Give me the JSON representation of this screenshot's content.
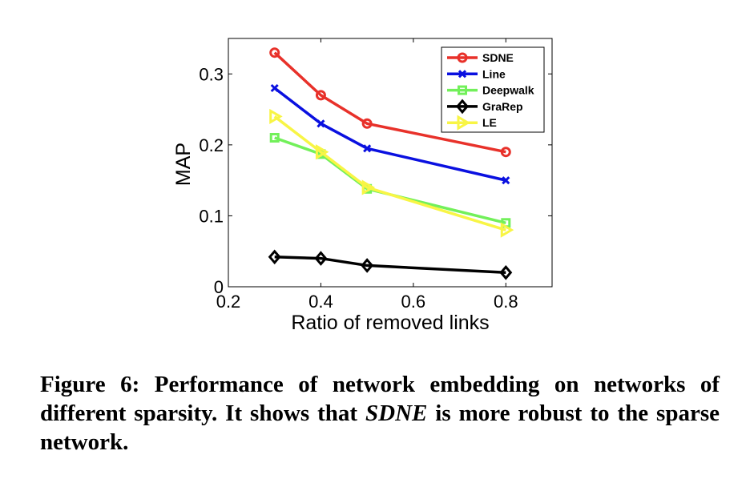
{
  "chart_data": {
    "type": "line",
    "title": "",
    "xlabel": "Ratio of removed links",
    "ylabel": "MAP",
    "xlim": [
      0.2,
      0.9
    ],
    "ylim": [
      0,
      0.35
    ],
    "xticks": [
      "0.2",
      "0.4",
      "0.6",
      "0.8"
    ],
    "yticks": [
      "0",
      "0.1",
      "0.2",
      "0.3"
    ],
    "x": [
      0.3,
      0.4,
      0.5,
      0.8
    ],
    "legend_position": "top-right",
    "grid": false,
    "series": [
      {
        "name": "SDNE",
        "color": "#e8312a",
        "marker": "circle",
        "values": [
          0.33,
          0.27,
          0.23,
          0.19
        ]
      },
      {
        "name": "Line",
        "color": "#0a10e0",
        "marker": "x",
        "values": [
          0.28,
          0.23,
          0.195,
          0.15
        ]
      },
      {
        "name": "Deepwalk",
        "color": "#72f05a",
        "marker": "square",
        "values": [
          0.21,
          0.187,
          0.138,
          0.09
        ]
      },
      {
        "name": "GraRep",
        "color": "#000000",
        "marker": "diamond",
        "values": [
          0.042,
          0.04,
          0.03,
          0.02
        ]
      },
      {
        "name": "LE",
        "color": "#f8f545",
        "marker": "triangle-right",
        "values": [
          0.24,
          0.19,
          0.14,
          0.08
        ]
      }
    ]
  },
  "caption": {
    "label": "Figure 6:",
    "text_before": " Performance of network embedding on networks of different sparsity.  It shows that ",
    "emphasis": "SDNE",
    "text_after": " is more robust to the sparse network."
  }
}
